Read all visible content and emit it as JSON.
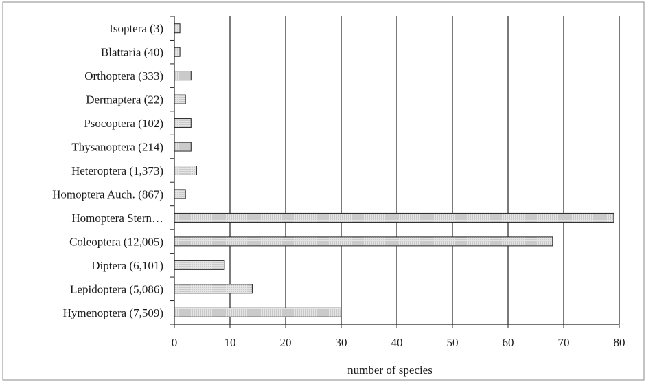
{
  "chart_data": {
    "type": "bar",
    "orientation": "horizontal",
    "categories": [
      "Isoptera (3)",
      "Blattaria (40)",
      "Orthoptera (333)",
      "Dermaptera (22)",
      "Psocoptera (102)",
      "Thysanoptera (214)",
      "Heteroptera (1,373)",
      "Homoptera Auch. (867)",
      "Homoptera Stern…",
      "Coleoptera (12,005)",
      "Diptera (6,101)",
      "Lepidoptera (5,086)",
      "Hymenoptera (7,509)"
    ],
    "values": [
      1,
      1,
      3,
      2,
      3,
      3,
      4,
      2,
      79,
      68,
      9,
      14,
      30
    ],
    "xlabel": "number of species",
    "xlim": [
      0,
      80
    ],
    "xticks": [
      0,
      10,
      20,
      30,
      40,
      50,
      60,
      70,
      80
    ],
    "grid": "vertical",
    "legend": "none",
    "colors": {
      "bar_fill": "#d2d2d2",
      "bar_stroke": "#222222",
      "gridline": "#222222",
      "frame": "#888888"
    }
  }
}
